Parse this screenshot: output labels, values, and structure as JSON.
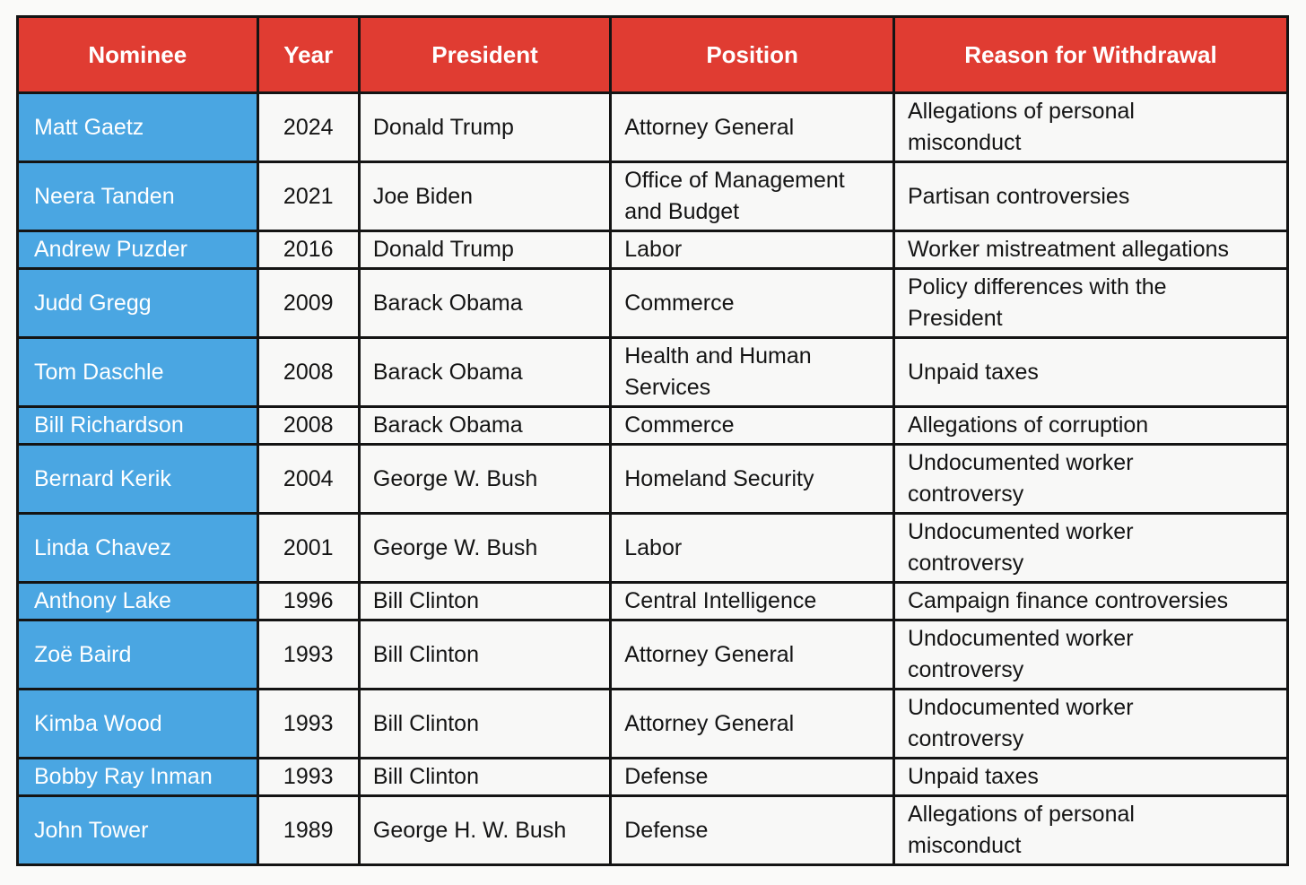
{
  "colors": {
    "header_bg": "#E03C32",
    "header_text": "#FFFFFF",
    "nominee_bg": "#4AA6E2",
    "nominee_text": "#FFFFFF",
    "grid_line": "#141414",
    "cell_bg": "#F8F8F7",
    "page_bg": "#FAFAF9"
  },
  "chart_data": {
    "type": "table",
    "title": "",
    "columns": [
      "Nominee",
      "Year",
      "President",
      "Position",
      "Reason for Withdrawal"
    ],
    "rows": [
      {
        "nominee": "Matt Gaetz",
        "year": "2024",
        "president": "Donald Trump",
        "position": "Attorney General",
        "reason": "Allegations of personal\nmisconduct"
      },
      {
        "nominee": "Neera Tanden",
        "year": "2021",
        "president": "Joe Biden",
        "position": "Office of Management\nand Budget",
        "reason": "Partisan controversies"
      },
      {
        "nominee": "Andrew Puzder",
        "year": "2016",
        "president": "Donald Trump",
        "position": "Labor",
        "reason": "Worker mistreatment allegations"
      },
      {
        "nominee": "Judd Gregg",
        "year": "2009",
        "president": "Barack Obama",
        "position": "Commerce",
        "reason": "Policy differences with the\nPresident"
      },
      {
        "nominee": "Tom Daschle",
        "year": "2008",
        "president": "Barack Obama",
        "position": "Health and Human\nServices",
        "reason": "Unpaid taxes"
      },
      {
        "nominee": "Bill Richardson",
        "year": "2008",
        "president": "Barack Obama",
        "position": "Commerce",
        "reason": "Allegations of corruption"
      },
      {
        "nominee": "Bernard Kerik",
        "year": "2004",
        "president": "George W. Bush",
        "position": "Homeland Security",
        "reason": "Undocumented worker\ncontroversy"
      },
      {
        "nominee": "Linda Chavez",
        "year": "2001",
        "president": "George W. Bush",
        "position": "Labor",
        "reason": "Undocumented worker\ncontroversy"
      },
      {
        "nominee": "Anthony Lake",
        "year": "1996",
        "president": "Bill Clinton",
        "position": "Central Intelligence",
        "reason": "Campaign finance controversies"
      },
      {
        "nominee": "Zoë Baird",
        "year": "1993",
        "president": "Bill Clinton",
        "position": "Attorney General",
        "reason": "Undocumented worker\ncontroversy"
      },
      {
        "nominee": "Kimba Wood",
        "year": "1993",
        "president": "Bill Clinton",
        "position": "Attorney General",
        "reason": "Undocumented worker\ncontroversy"
      },
      {
        "nominee": "Bobby Ray Inman",
        "year": "1993",
        "president": "Bill Clinton",
        "position": "Defense",
        "reason": "Unpaid taxes"
      },
      {
        "nominee": "John Tower",
        "year": "1989",
        "president": "George H. W. Bush",
        "position": "Defense",
        "reason": "Allegations of personal\nmisconduct"
      }
    ]
  }
}
